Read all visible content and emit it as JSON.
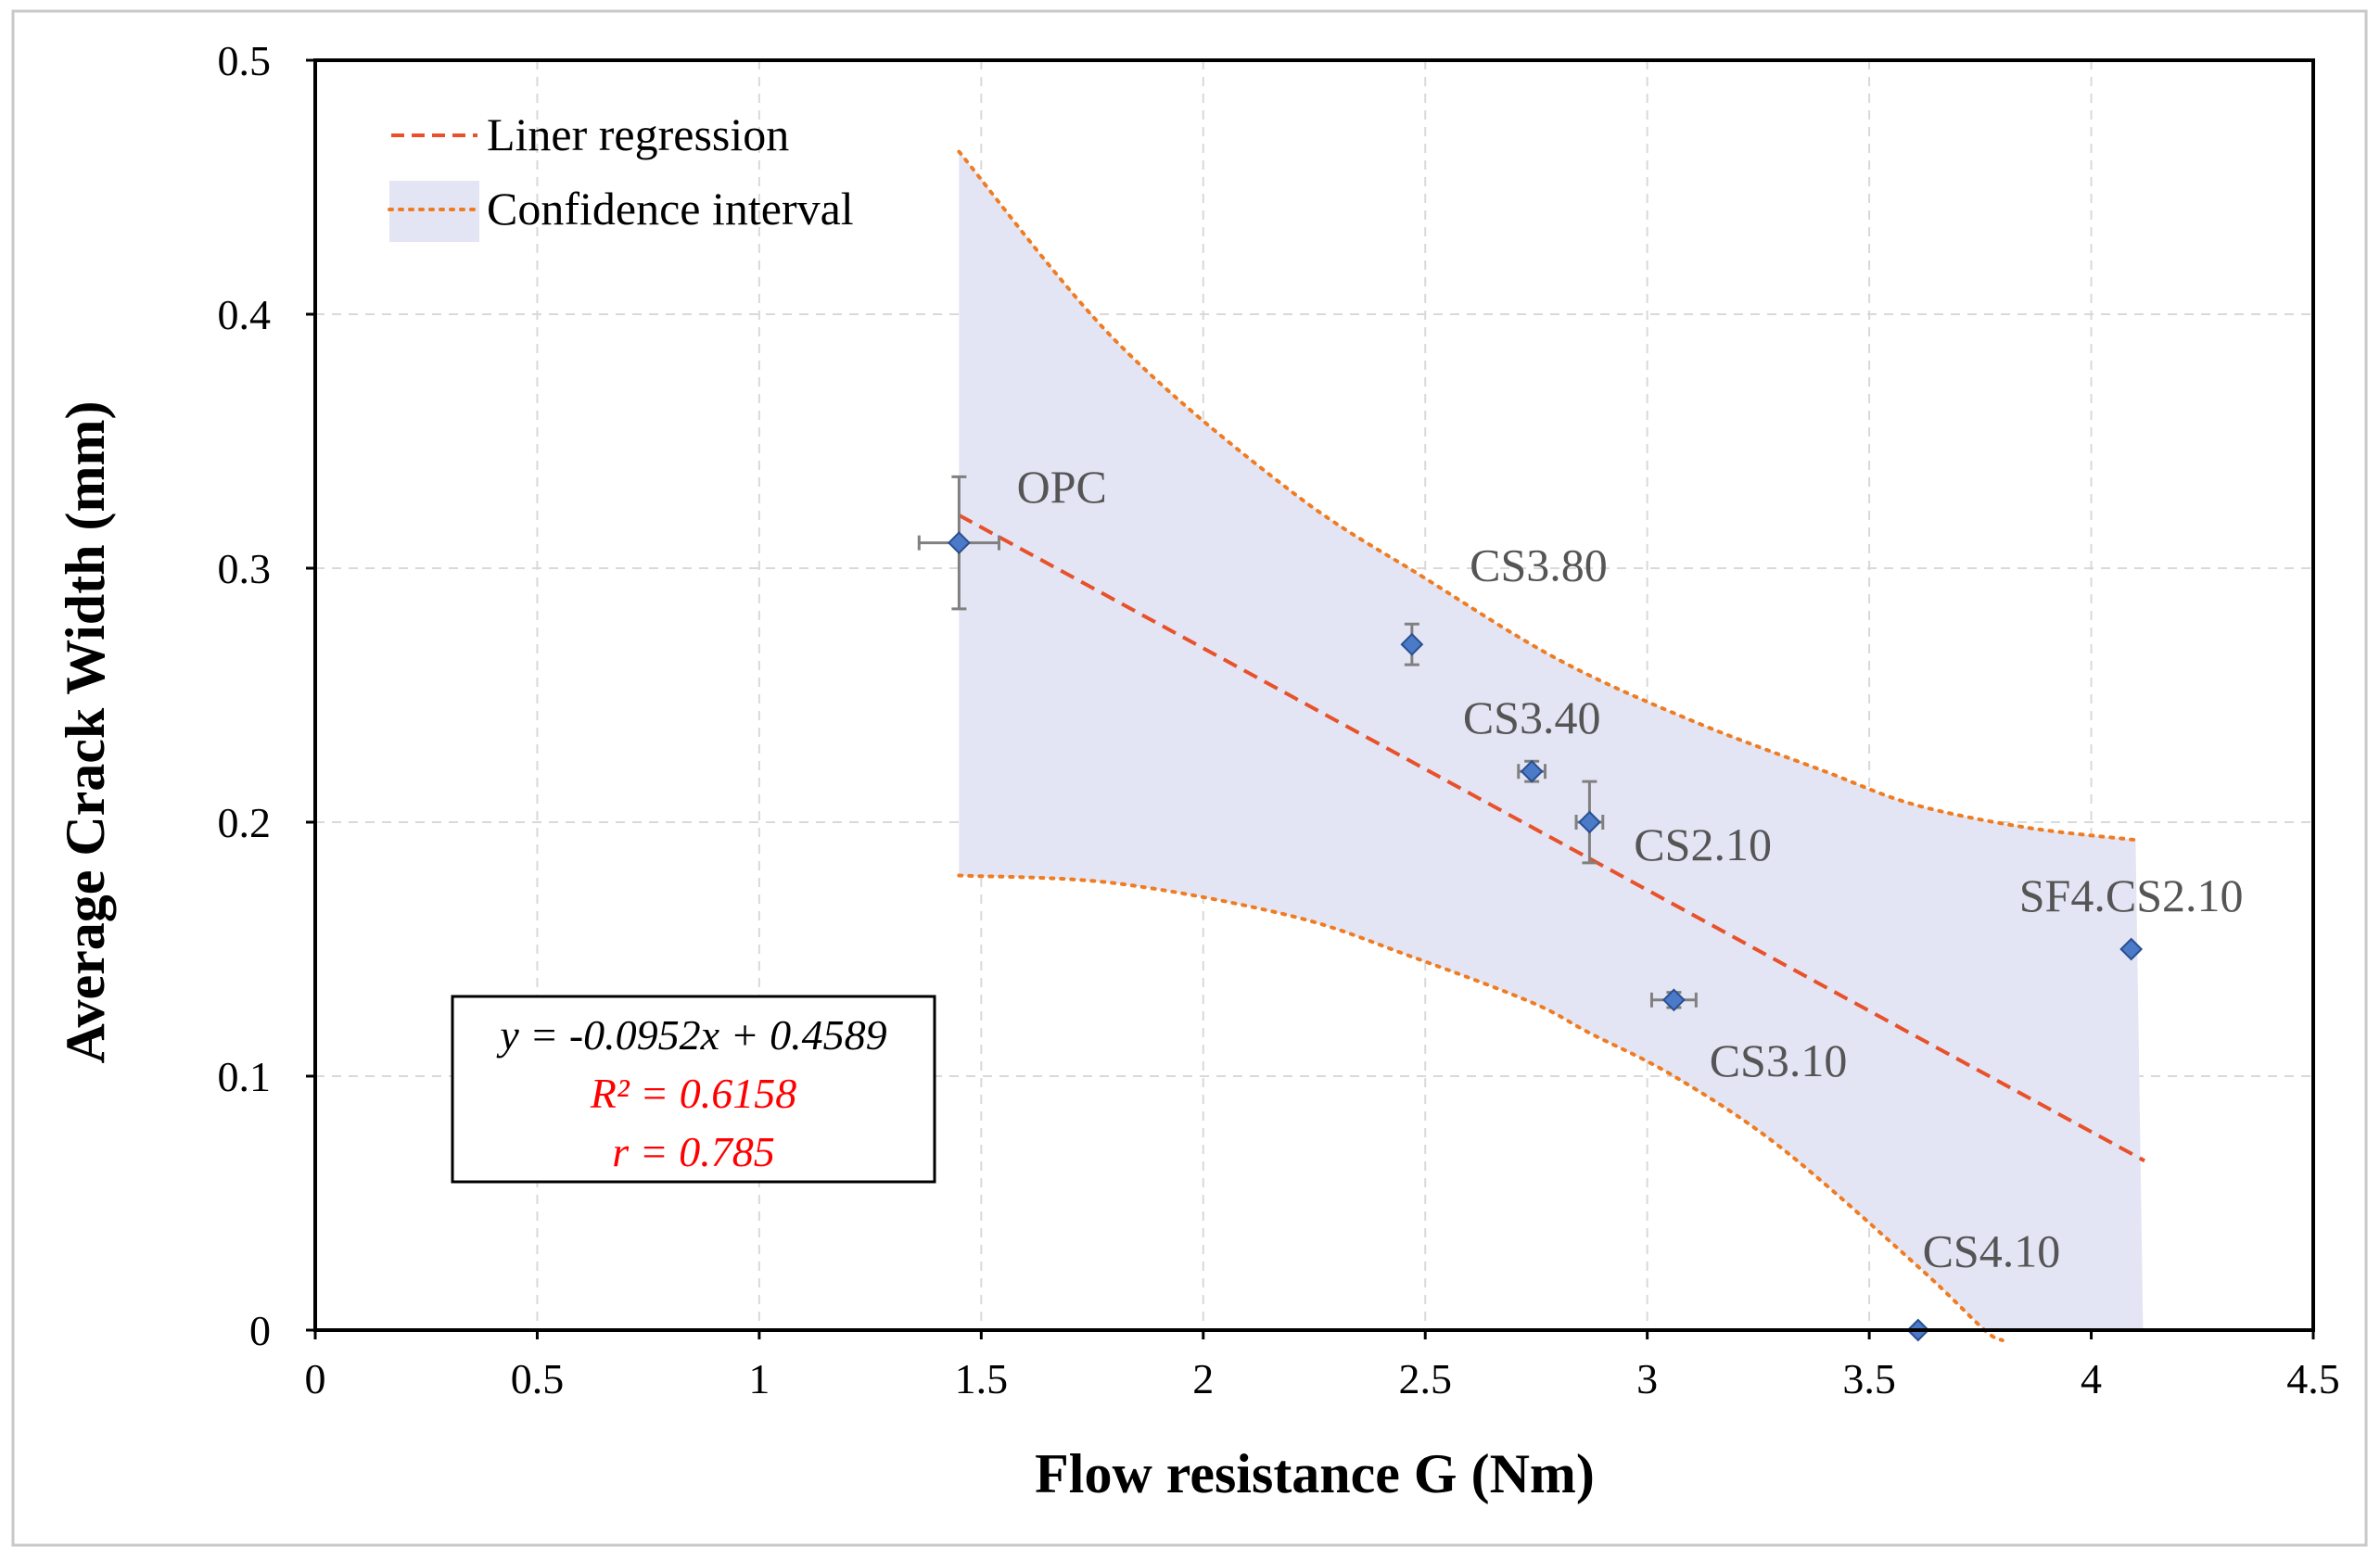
{
  "chart_data": {
    "type": "scatter",
    "xlabel": "Flow resistance G (Nm)",
    "ylabel": "Average Crack Width (mm)",
    "xlim": [
      0,
      4.5
    ],
    "ylim": [
      0,
      0.5
    ],
    "x_ticks": [
      0,
      0.5,
      1,
      1.5,
      2,
      2.5,
      3,
      3.5,
      4,
      4.5
    ],
    "x_tick_labels": [
      "0",
      "0.5",
      "1",
      "1.5",
      "2",
      "2.5",
      "3",
      "3.5",
      "4",
      "4.5"
    ],
    "y_ticks": [
      0,
      0.1,
      0.2,
      0.3,
      0.4,
      0.5
    ],
    "y_tick_labels": [
      "0",
      "0.1",
      "0.2",
      "0.3",
      "0.4",
      "0.5"
    ],
    "grid": true,
    "legend": [
      {
        "label": "Liner regression",
        "style": "dashed-line"
      },
      {
        "label": "Confidence interval",
        "style": "shaded-band"
      }
    ],
    "legend_position": "top-left",
    "points": [
      {
        "label": "OPC",
        "x": 1.45,
        "y": 0.31,
        "x_err": 0.09,
        "y_err": 0.026
      },
      {
        "label": "CS3.80",
        "x": 2.47,
        "y": 0.27,
        "x_err": 0.0,
        "y_err": 0.008
      },
      {
        "label": "CS3.40",
        "x": 2.74,
        "y": 0.22,
        "x_err": 0.03,
        "y_err": 0.004
      },
      {
        "label": "CS2.10",
        "x": 2.87,
        "y": 0.2,
        "x_err": 0.03,
        "y_err": 0.016
      },
      {
        "label": "CS3.10",
        "x": 3.06,
        "y": 0.13,
        "x_err": 0.05,
        "y_err": 0.003
      },
      {
        "label": "CS4.10",
        "x": 3.61,
        "y": 0.0,
        "x_err": 0.0,
        "y_err": 0.0
      },
      {
        "label": "SF4.CS2.10",
        "x": 4.09,
        "y": 0.15,
        "x_err": 0.0,
        "y_err": 0.0
      }
    ],
    "regression": {
      "slope": -0.0952,
      "intercept": 0.4589,
      "x_range": [
        1.45,
        4.12
      ]
    },
    "confidence_upper": [
      [
        1.45,
        0.464
      ],
      [
        1.8,
        0.39
      ],
      [
        2.2,
        0.33
      ],
      [
        2.5,
        0.296
      ],
      [
        2.8,
        0.264
      ],
      [
        3.1,
        0.24
      ],
      [
        3.4,
        0.22
      ],
      [
        3.6,
        0.207
      ],
      [
        3.85,
        0.198
      ],
      [
        4.1,
        0.193
      ]
    ],
    "confidence_lower": [
      [
        1.45,
        0.179
      ],
      [
        1.8,
        0.176
      ],
      [
        2.2,
        0.163
      ],
      [
        2.47,
        0.147
      ],
      [
        2.74,
        0.129
      ],
      [
        2.87,
        0.117
      ],
      [
        3.06,
        0.1
      ],
      [
        3.3,
        0.072
      ],
      [
        3.61,
        0.025
      ],
      [
        3.76,
        0.0
      ]
    ],
    "band_color": "#e3e5f4",
    "point_color": "#4a7ac8",
    "regression_color": "#e8512a",
    "ci_line_color": "#f07c22",
    "equation": {
      "line1": "y = -0.0952x + 0.4589",
      "line2": "R² = 0.6158",
      "line3": "r = 0.785",
      "line1_color": "#000000",
      "stats_color": "#ff0000"
    }
  }
}
